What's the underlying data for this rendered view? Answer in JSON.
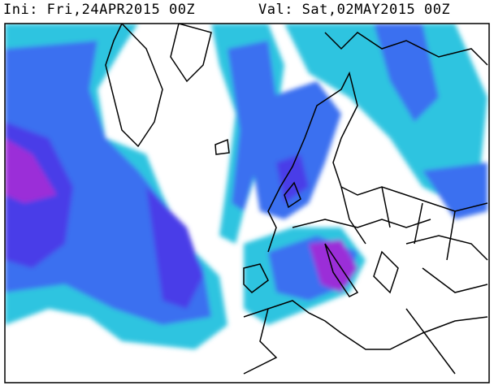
{
  "header": {
    "init": "Ini: Fri,24APR2015 00Z",
    "valid": "Val: Sat,02MAY2015 00Z"
  }
}
